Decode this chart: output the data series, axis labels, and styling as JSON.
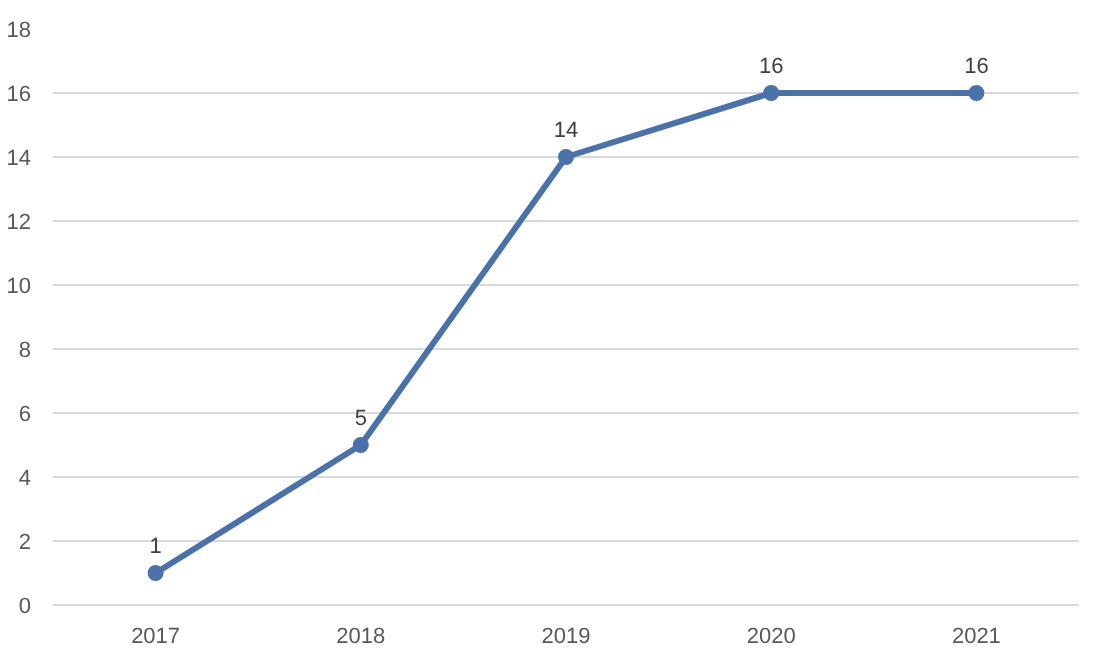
{
  "chart_data": {
    "type": "line",
    "categories": [
      "2017",
      "2018",
      "2019",
      "2020",
      "2021"
    ],
    "series": [
      {
        "color": "#4a72aa",
        "values": [
          1,
          5,
          14,
          16,
          16
        ]
      }
    ],
    "ylim": [
      0,
      18
    ],
    "yticks": [
      0,
      2,
      4,
      6,
      8,
      10,
      12,
      14,
      16,
      18
    ],
    "grid": "y",
    "marker": "circle",
    "line_style": "solid",
    "data_labels": true
  }
}
